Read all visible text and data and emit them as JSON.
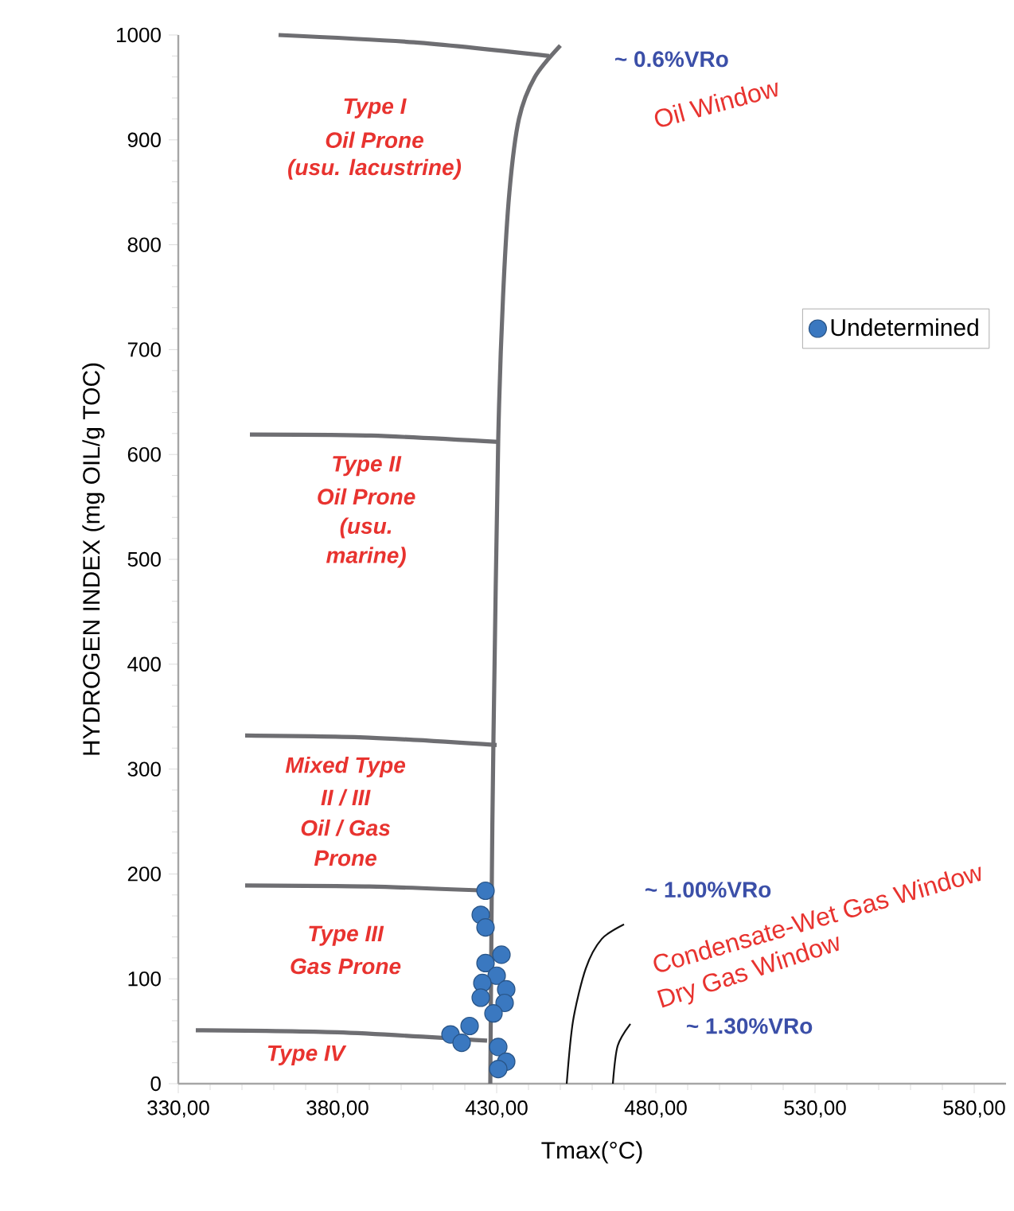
{
  "chart_data": {
    "type": "scatter",
    "xlabel": "Tmax(°C)",
    "ylabel": "HYDROGEN INDEX (mg OIL/g TOC)",
    "xlim": [
      330,
      590
    ],
    "ylim": [
      0,
      1000
    ],
    "xticks": [
      {
        "value": 330,
        "label": "330,00"
      },
      {
        "value": 380,
        "label": "380,00"
      },
      {
        "value": 430,
        "label": "430,00"
      },
      {
        "value": 480,
        "label": "480,00"
      },
      {
        "value": 530,
        "label": "530,00"
      },
      {
        "value": 580,
        "label": "580,00"
      }
    ],
    "yticks": [
      0,
      100,
      200,
      300,
      400,
      500,
      600,
      700,
      800,
      900,
      1000
    ],
    "grid": false,
    "legend": "right",
    "series": [
      {
        "name": "Undetermined",
        "marker": "circle",
        "color": "#3a78c0",
        "x": [
          426.5,
          425,
          426.5,
          431.5,
          426.5,
          430,
          425.5,
          433,
          425,
          432.5,
          429,
          421.5,
          415.5,
          419,
          430.5,
          433,
          430.5
        ],
        "values": [
          184,
          161,
          149,
          123,
          115,
          103,
          96,
          90,
          82,
          77,
          67,
          55,
          47,
          39,
          35,
          21,
          14
        ]
      },
      {
        "type": "line",
        "color": "#6e6e72",
        "x": [
          428,
          428.5,
          429,
          430.5,
          432,
          434,
          437,
          442,
          450
        ],
        "values": [
          0,
          200,
          330,
          615,
          750,
          850,
          920,
          960,
          990
        ]
      },
      {
        "type": "line",
        "color": "#6e6e72",
        "x": [
          361.5,
          404,
          446.5
        ],
        "values": [
          1000,
          993,
          980
        ]
      },
      {
        "type": "line",
        "color": "#6e6e72",
        "x": [
          352.5,
          390.5,
          430.5
        ],
        "values": [
          619,
          618,
          612
        ]
      },
      {
        "type": "line",
        "color": "#6e6e72",
        "x": [
          351,
          390,
          430
        ],
        "values": [
          332,
          330,
          323
        ]
      },
      {
        "type": "line",
        "color": "#6e6e72",
        "x": [
          351,
          390,
          427
        ],
        "values": [
          189,
          188,
          184
        ]
      },
      {
        "type": "line",
        "color": "#6e6e72",
        "x": [
          335.5,
          380,
          427
        ],
        "values": [
          51,
          49,
          41
        ]
      },
      {
        "type": "line",
        "color": "#111111",
        "x": [
          452,
          454,
          458,
          463,
          470
        ],
        "values": [
          0,
          60,
          110,
          138,
          152
        ]
      },
      {
        "type": "line",
        "color": "#111111",
        "x": [
          466.5,
          468,
          472
        ],
        "values": [
          0,
          36,
          57
        ]
      }
    ],
    "annotations": [
      "Type I",
      "Oil Prone",
      "(usu. lacustrine)",
      "Type II",
      "Oil Prone",
      "(usu.",
      "marine)",
      "Mixed Type",
      "II / III",
      "Oil / Gas",
      "Prone",
      "Type III",
      "Gas Prone",
      "Type IV",
      "~ 0.6%VRo",
      "Oil Window",
      "~ 1.00%VRo",
      "Condensate-Wet Gas Window",
      "Dry Gas Window",
      "~ 1.30%VRo"
    ]
  }
}
